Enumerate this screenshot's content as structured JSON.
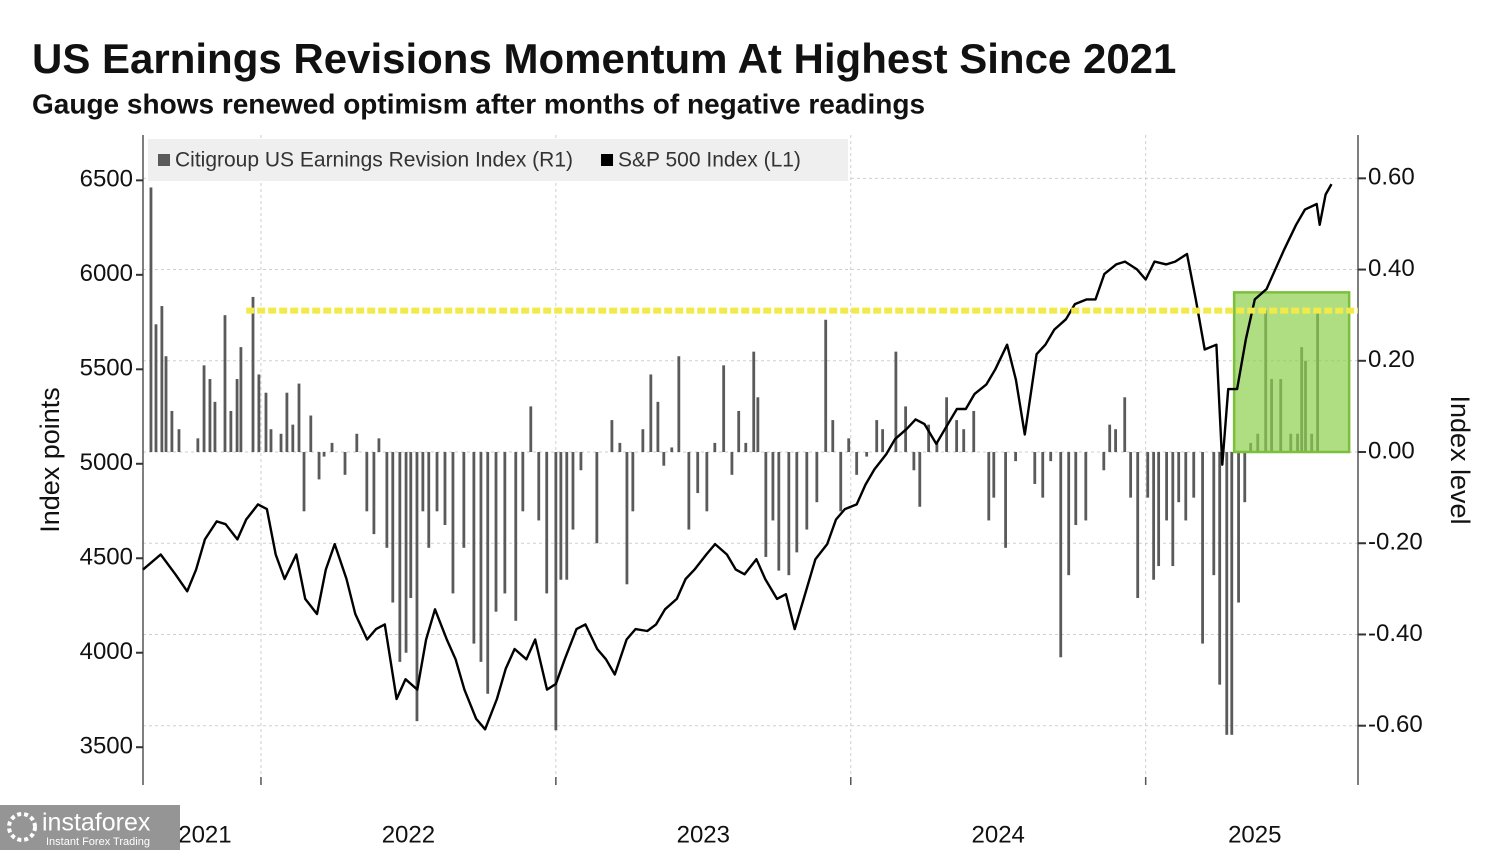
{
  "chart_data": {
    "type": "combo",
    "title": "US Earnings Revisions Momentum At Highest Since 2021",
    "subtitle": "Gauge shows renewed optimism after months of negative readings",
    "y_label": "Index points",
    "y2_label": "Index level",
    "xlim": [
      2021.6,
      2025.72
    ],
    "xticks": [
      {
        "value": 2021.81,
        "label": "2021"
      },
      {
        "value": 2022.5,
        "label": "2022"
      },
      {
        "value": 2023.5,
        "label": "2023"
      },
      {
        "value": 2024.5,
        "label": "2024"
      },
      {
        "value": 2025.37,
        "label": "2025"
      }
    ],
    "xgrid": [
      2022,
      2023,
      2024,
      2025
    ],
    "ylim": [
      3300,
      6740
    ],
    "yticks": [
      3500,
      4000,
      4500,
      5000,
      5500,
      6000,
      6500
    ],
    "y2lim": [
      -0.73,
      0.695
    ],
    "y2ticks": [
      {
        "value": -0.6,
        "label": "-0.60"
      },
      {
        "value": -0.4,
        "label": "-0.40"
      },
      {
        "value": -0.2,
        "label": "-0.20"
      },
      {
        "value": 0,
        "label": "0.00"
      },
      {
        "value": 0.2,
        "label": "0.20"
      },
      {
        "value": 0.4,
        "label": "0.40"
      },
      {
        "value": 0.6,
        "label": "0.60"
      }
    ],
    "grid": true,
    "legend": "top-left",
    "series": [
      {
        "name": "Citigroup US Earnings Revision Index (R1)",
        "type": "bar",
        "axis": "y2",
        "color": "#5a5a5a",
        "x": [
          2021.627,
          2021.644,
          2021.664,
          2021.678,
          2021.698,
          2021.722,
          2021.786,
          2021.807,
          2021.827,
          2021.844,
          2021.878,
          2021.898,
          2021.919,
          2021.932,
          2021.973,
          2021.993,
          2022.017,
          2022.034,
          2022.068,
          2022.088,
          2022.108,
          2022.129,
          2022.146,
          2022.169,
          2022.197,
          2022.214,
          2022.241,
          2022.285,
          2022.325,
          2022.359,
          2022.383,
          2022.4,
          2022.427,
          2022.447,
          2022.471,
          2022.492,
          2022.508,
          2022.529,
          2022.549,
          2022.569,
          2022.597,
          2022.624,
          2022.651,
          2022.688,
          2022.722,
          2022.746,
          2022.769,
          2022.797,
          2022.827,
          2022.864,
          2022.888,
          2022.915,
          2022.942,
          2022.969,
          2023.0,
          2023.017,
          2023.037,
          2023.058,
          2023.085,
          2023.139,
          2023.19,
          2023.217,
          2023.241,
          2023.261,
          2023.295,
          2023.322,
          2023.346,
          2023.366,
          2023.393,
          2023.417,
          2023.451,
          2023.481,
          2023.512,
          2023.539,
          2023.569,
          2023.597,
          2023.62,
          2023.644,
          2023.671,
          2023.685,
          2023.712,
          2023.736,
          2023.756,
          2023.79,
          2023.817,
          2023.851,
          2023.885,
          2023.915,
          2023.939,
          2023.966,
          2023.993,
          2024.02,
          2024.054,
          2024.088,
          2024.108,
          2024.153,
          2024.186,
          2024.214,
          2024.234,
          2024.264,
          2024.292,
          2024.325,
          2024.359,
          2024.383,
          2024.417,
          2024.468,
          2024.485,
          2024.525,
          2024.559,
          2024.624,
          2024.651,
          2024.678,
          2024.712,
          2024.739,
          2024.763,
          2024.797,
          2024.858,
          2024.878,
          2024.898,
          2024.929,
          2024.949,
          2024.973,
          2025.007,
          2025.027,
          2025.044,
          2025.071,
          2025.092,
          2025.112,
          2025.136,
          2025.163,
          2025.193,
          2025.231,
          2025.251,
          2025.275,
          2025.292,
          2025.315,
          2025.336,
          2025.356,
          2025.38,
          2025.407,
          2025.427,
          2025.458,
          2025.492,
          2025.515,
          2025.529,
          2025.542,
          2025.563,
          2025.583
        ],
        "values": [
          0.58,
          0.28,
          0.32,
          0.21,
          0.09,
          0.05,
          0.03,
          0.19,
          0.16,
          0.11,
          0.3,
          0.09,
          0.16,
          0.23,
          0.34,
          0.17,
          0.13,
          0.05,
          0.04,
          0.13,
          0.06,
          0.15,
          -0.13,
          0.08,
          -0.06,
          -0.01,
          0.02,
          -0.05,
          0.04,
          -0.13,
          -0.18,
          0.03,
          -0.21,
          -0.33,
          -0.46,
          -0.44,
          -0.32,
          -0.59,
          -0.13,
          -0.21,
          -0.13,
          -0.16,
          -0.31,
          -0.21,
          -0.42,
          -0.46,
          -0.53,
          -0.35,
          -0.31,
          -0.37,
          -0.13,
          0.1,
          -0.15,
          -0.31,
          -0.61,
          -0.28,
          -0.28,
          -0.17,
          -0.04,
          -0.2,
          0.07,
          0.02,
          -0.29,
          -0.13,
          0.05,
          0.17,
          0.11,
          -0.03,
          0.01,
          0.21,
          -0.17,
          -0.09,
          -0.13,
          0.02,
          0.19,
          -0.05,
          0.09,
          0.02,
          0.22,
          0.12,
          -0.23,
          -0.15,
          -0.26,
          -0.27,
          -0.22,
          -0.17,
          -0.11,
          0.29,
          0.07,
          -0.13,
          0.03,
          -0.05,
          -0.01,
          0.07,
          0.05,
          0.22,
          0.1,
          -0.04,
          -0.12,
          0.06,
          0.02,
          0.12,
          0.07,
          0.05,
          0.09,
          -0.15,
          -0.1,
          -0.21,
          -0.02,
          -0.07,
          -0.1,
          -0.02,
          -0.45,
          -0.27,
          -0.16,
          -0.15,
          -0.04,
          0.06,
          0.05,
          0.12,
          -0.1,
          -0.32,
          -0.1,
          -0.28,
          -0.25,
          -0.15,
          -0.25,
          -0.11,
          -0.15,
          -0.1,
          -0.42,
          -0.27,
          -0.51,
          -0.62,
          -0.62,
          -0.33,
          -0.11,
          0.02,
          0.04,
          0.31,
          0.16,
          0.16,
          0.04,
          0.04,
          0.23,
          0.2,
          0.04,
          0.31
        ]
      },
      {
        "name": "S&P 500 Index (L1)",
        "type": "line",
        "axis": "y",
        "color": "#000000",
        "x": [
          2021.6,
          2021.66,
          2021.71,
          2021.75,
          2021.78,
          2021.81,
          2021.85,
          2021.88,
          2021.92,
          2021.95,
          2021.99,
          2022.02,
          2022.05,
          2022.08,
          2022.12,
          2022.15,
          2022.19,
          2022.22,
          2022.25,
          2022.29,
          2022.32,
          2022.36,
          2022.39,
          2022.42,
          2022.46,
          2022.49,
          2022.53,
          2022.56,
          2022.59,
          2022.63,
          2022.66,
          2022.69,
          2022.73,
          2022.76,
          2022.8,
          2022.83,
          2022.86,
          2022.9,
          2022.93,
          2022.97,
          2023.0,
          2023.03,
          2023.07,
          2023.1,
          2023.14,
          2023.17,
          2023.2,
          2023.24,
          2023.27,
          2023.31,
          2023.34,
          2023.37,
          2023.41,
          2023.44,
          2023.47,
          2023.51,
          2023.54,
          2023.58,
          2023.61,
          2023.64,
          2023.68,
          2023.71,
          2023.75,
          2023.78,
          2023.81,
          2023.85,
          2023.88,
          2023.92,
          2023.95,
          2023.98,
          2024.02,
          2024.05,
          2024.08,
          2024.12,
          2024.15,
          2024.19,
          2024.22,
          2024.25,
          2024.29,
          2024.32,
          2024.36,
          2024.39,
          2024.42,
          2024.46,
          2024.49,
          2024.53,
          2024.56,
          2024.59,
          2024.63,
          2024.66,
          2024.69,
          2024.73,
          2024.76,
          2024.8,
          2024.83,
          2024.86,
          2024.9,
          2024.93,
          2024.97,
          2025.0,
          2025.03,
          2025.07,
          2025.1,
          2025.14,
          2025.17,
          2025.2,
          2025.24,
          2025.26,
          2025.28,
          2025.31,
          2025.34,
          2025.37,
          2025.41,
          2025.44,
          2025.47,
          2025.51,
          2025.54,
          2025.58,
          2025.59,
          2025.61,
          2025.63
        ],
        "values": [
          4440,
          4520,
          4415,
          4325,
          4440,
          4600,
          4695,
          4680,
          4600,
          4705,
          4785,
          4760,
          4520,
          4390,
          4520,
          4285,
          4205,
          4440,
          4575,
          4390,
          4205,
          4070,
          4125,
          4150,
          3755,
          3860,
          3805,
          4070,
          4230,
          4070,
          3965,
          3805,
          3650,
          3595,
          3755,
          3915,
          4020,
          3965,
          4070,
          3805,
          3835,
          3965,
          4125,
          4150,
          4020,
          3965,
          3885,
          4070,
          4125,
          4115,
          4150,
          4230,
          4285,
          4390,
          4440,
          4520,
          4575,
          4520,
          4440,
          4415,
          4495,
          4390,
          4285,
          4310,
          4125,
          4335,
          4495,
          4575,
          4705,
          4760,
          4785,
          4890,
          4970,
          5050,
          5130,
          5185,
          5235,
          5210,
          5105,
          5185,
          5290,
          5290,
          5370,
          5420,
          5500,
          5630,
          5445,
          5155,
          5580,
          5630,
          5710,
          5765,
          5845,
          5870,
          5870,
          6005,
          6055,
          6070,
          6030,
          5975,
          6070,
          6055,
          6070,
          6110,
          5870,
          5605,
          5630,
          4995,
          5395,
          5395,
          5660,
          5870,
          5925,
          6030,
          6135,
          6265,
          6345,
          6375,
          6265,
          6425,
          6480
        ]
      }
    ],
    "reference_line": {
      "y2": 0.31,
      "x": [
        2021.95,
        2025.72
      ],
      "color": "#f2ea4a"
    },
    "highlight": {
      "x": [
        2025.3,
        2025.69
      ],
      "y2": [
        0,
        0.35
      ],
      "color": "#8ccf4d"
    }
  },
  "watermark": {
    "brand": "instaforex",
    "tagline": "Instant Forex Trading"
  }
}
